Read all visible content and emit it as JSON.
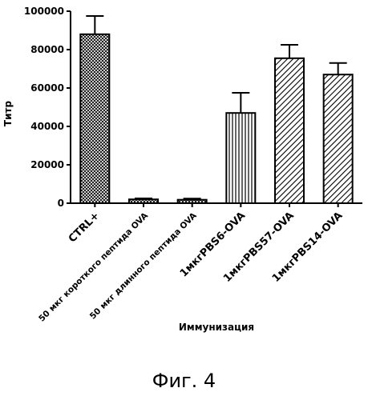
{
  "chart_data": {
    "type": "bar",
    "categories": [
      "CTRL+",
      "50 мкг короткого пептида OVA",
      "50 мкг длинного пептида OVA",
      "1мкгPBS6-OVA",
      "1мкгPBS57-OVA",
      "1мкгPBS14-OVA"
    ],
    "values": [
      88000,
      2000,
      1800,
      47000,
      75500,
      67000
    ],
    "errors": [
      9500,
      500,
      600,
      10500,
      7000,
      6000
    ],
    "patterns": [
      "crosshatch",
      "crosshatch",
      "crosshatch",
      "vertical",
      "diagonal",
      "diagonal"
    ],
    "ylim": [
      0,
      100000
    ],
    "yticks": [
      "0",
      "20000",
      "40000",
      "60000",
      "80000",
      "100000"
    ],
    "ylabel": "Титр",
    "xlabel": "Иммунизация",
    "grid": false,
    "colors": {
      "bar_stroke": "#000000",
      "fill": "#ffffff"
    }
  },
  "caption": "Фиг. 4"
}
